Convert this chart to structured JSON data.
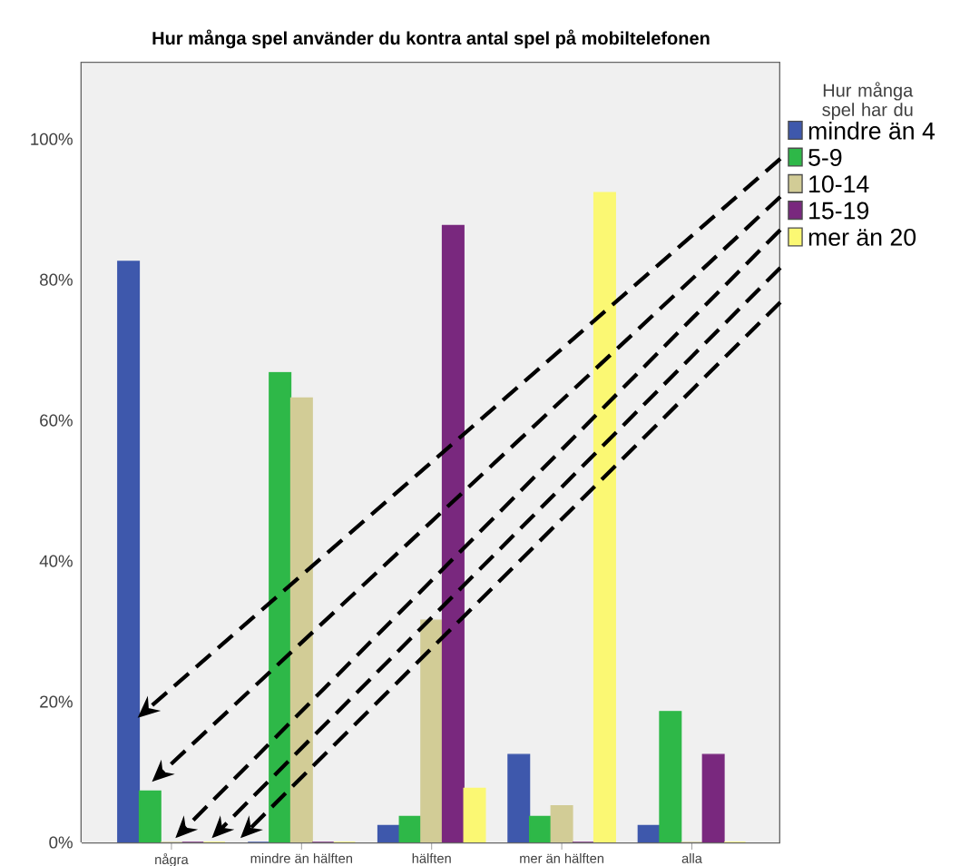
{
  "chart_data": {
    "type": "bar",
    "title": "Hur många spel använder du kontra antal spel på mobiltelefonen",
    "categories": [
      "några",
      "mindre än hälften",
      "hälften",
      "mer än hälften",
      "alla"
    ],
    "legend_title": "Hur många spel har du",
    "series": [
      {
        "name": "mindre än 4",
        "color": "#3e58ac",
        "values": [
          82.6,
          0,
          2.4,
          12.5,
          2.4
        ]
      },
      {
        "name": "5-9",
        "color": "#2eb848",
        "values": [
          7.3,
          66.8,
          3.7,
          3.7,
          18.6
        ]
      },
      {
        "name": "10-14",
        "color": "#d2cc96",
        "values": [
          0,
          63.2,
          31.6,
          5.2,
          0
        ]
      },
      {
        "name": "15-19",
        "color": "#79287e",
        "values": [
          0,
          0,
          87.7,
          0,
          12.5
        ]
      },
      {
        "name": "mer än 20",
        "color": "#fbf873",
        "values": [
          0,
          0,
          7.7,
          92.4,
          0
        ]
      }
    ],
    "ylim": [
      0,
      111
    ],
    "yticks": [
      {
        "value": 0,
        "label": "0%"
      },
      {
        "value": 20,
        "label": "20%"
      },
      {
        "value": 40,
        "label": "40%"
      },
      {
        "value": 60,
        "label": "60%"
      },
      {
        "value": 80,
        "label": "80%"
      },
      {
        "value": 100,
        "label": "100%"
      }
    ],
    "legend": "right"
  }
}
